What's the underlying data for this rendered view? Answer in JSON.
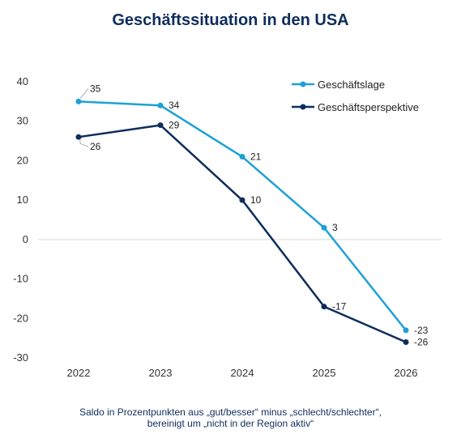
{
  "chart_data": {
    "type": "line",
    "title": "Geschäftssituation in den USA",
    "x": [
      "2022",
      "2023",
      "2024",
      "2025",
      "2026"
    ],
    "yticks": [
      40,
      30,
      20,
      10,
      0,
      -10,
      -20,
      -30
    ],
    "ytick_labels": [
      "40",
      "30",
      "20",
      "10",
      "0",
      "-10",
      "-20",
      "-30"
    ],
    "ylim": [
      -30,
      40
    ],
    "grid": false,
    "legend_position": "top-right",
    "series": [
      {
        "name": "Geschäftslage",
        "color": "#1da1d6",
        "values": [
          35,
          34,
          21,
          3,
          -23
        ],
        "labels": [
          "35",
          "34",
          "21",
          "3",
          "-23"
        ]
      },
      {
        "name": "Geschäftsperspektive",
        "color": "#0e2d5c",
        "values": [
          26,
          29,
          10,
          -17,
          -26
        ],
        "labels": [
          "26",
          "29",
          "10",
          "-17",
          "-26"
        ]
      }
    ],
    "footnote_lines": [
      "Saldo in Prozentpunkten aus „gut/besser“ minus „schlecht/schlechter“,",
      "bereinigt um „nicht in der Region aktiv“"
    ]
  }
}
